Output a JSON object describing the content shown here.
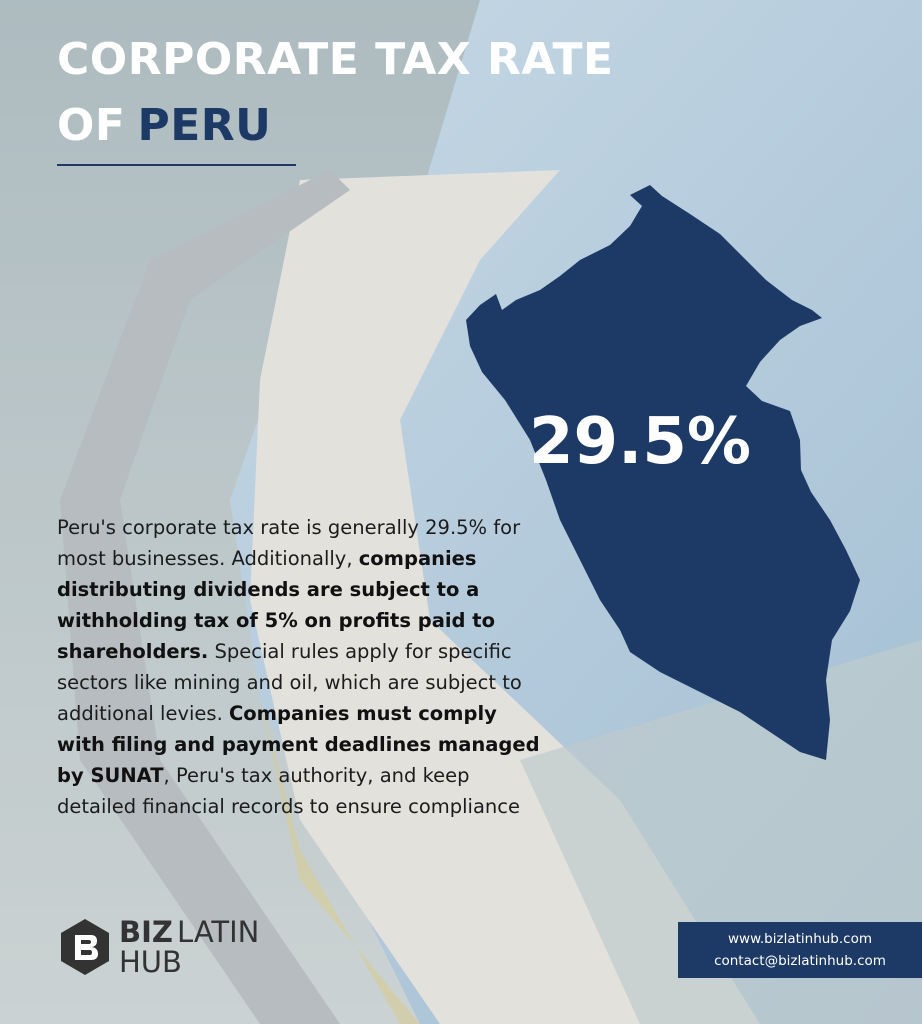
{
  "title_line1": "CORPORATE TAX RATE",
  "title_of": "OF",
  "title_country": "PERU",
  "rate": "29.5%",
  "paragraph": [
    {
      "text": "Peru's corporate tax rate is generally 29.5% for most businesses. Additionally, ",
      "bold": false
    },
    {
      "text": "companies distributing dividends are subject to a withholding tax of 5% on profits paid to shareholders.",
      "bold": true
    },
    {
      "text": " Special rules apply for specific sectors like mining and oil, which are subject to additional levies. ",
      "bold": false
    },
    {
      "text": "Companies must comply with filing and payment deadlines managed by SUNAT",
      "bold": true
    },
    {
      "text": ", Peru's tax authority, and keep detailed financial records to ensure compliance",
      "bold": false
    }
  ],
  "logo": {
    "biz": "BIZ",
    "latin": "LATIN",
    "hub": "HUB"
  },
  "contact": {
    "website": "www.bizlatinhub.com",
    "email": "contact@bizlatinhub.com"
  }
}
